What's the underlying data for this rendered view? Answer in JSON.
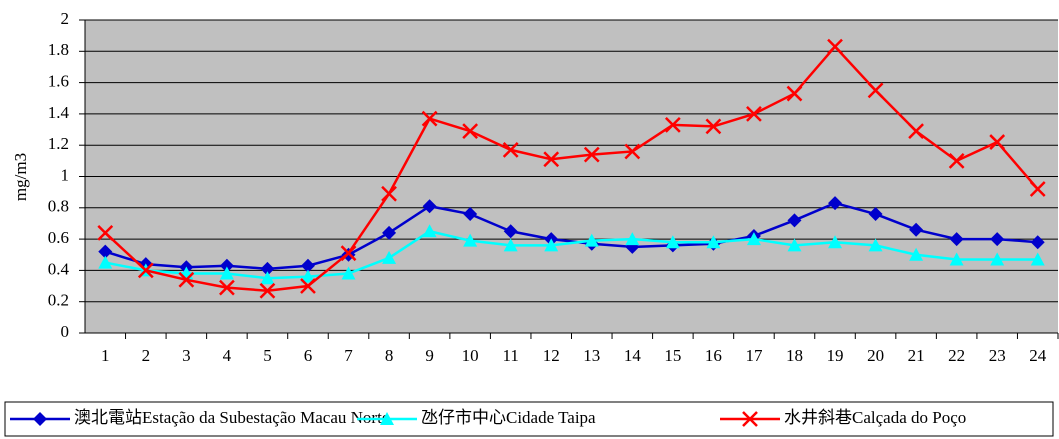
{
  "chart_data": {
    "type": "line",
    "y_label": "mg/m3",
    "categories": [
      "1",
      "2",
      "3",
      "4",
      "5",
      "6",
      "7",
      "8",
      "9",
      "10",
      "11",
      "12",
      "13",
      "14",
      "15",
      "16",
      "17",
      "18",
      "19",
      "20",
      "21",
      "22",
      "23",
      "24"
    ],
    "series": [
      {
        "name": "澳北電站Estação da Subestação Macau Norte",
        "color": "#0000cc",
        "marker": "diamond",
        "values": [
          0.52,
          0.44,
          0.42,
          0.43,
          0.41,
          0.43,
          0.5,
          0.64,
          0.81,
          0.76,
          0.65,
          0.6,
          0.57,
          0.55,
          0.56,
          0.57,
          0.62,
          0.72,
          0.83,
          0.76,
          0.66,
          0.6,
          0.6,
          0.58
        ]
      },
      {
        "name": "氹仔市中心Cidade Taipa",
        "color": "#00ffff",
        "marker": "triangle",
        "values": [
          0.45,
          0.4,
          0.38,
          0.38,
          0.35,
          0.36,
          0.38,
          0.48,
          0.65,
          0.59,
          0.56,
          0.56,
          0.59,
          0.6,
          0.58,
          0.58,
          0.6,
          0.56,
          0.58,
          0.56,
          0.5,
          0.47,
          0.47,
          0.47
        ]
      },
      {
        "name": "水井斜巷Calçada do Poço",
        "color": "#ff0000",
        "marker": "x",
        "values": [
          0.64,
          0.4,
          0.34,
          0.29,
          0.27,
          0.3,
          0.51,
          0.89,
          1.37,
          1.29,
          1.17,
          1.11,
          1.14,
          1.16,
          1.33,
          1.32,
          1.4,
          1.53,
          1.83,
          1.55,
          1.29,
          1.1,
          1.22,
          0.92
        ]
      }
    ],
    "ylim": [
      0,
      2
    ],
    "yticks": [
      0,
      0.2,
      0.4,
      0.6,
      0.8,
      1,
      1.2,
      1.4,
      1.6,
      1.8,
      2
    ],
    "grid": true,
    "plot_background": "#c0c0c0",
    "legend": "bottom"
  }
}
